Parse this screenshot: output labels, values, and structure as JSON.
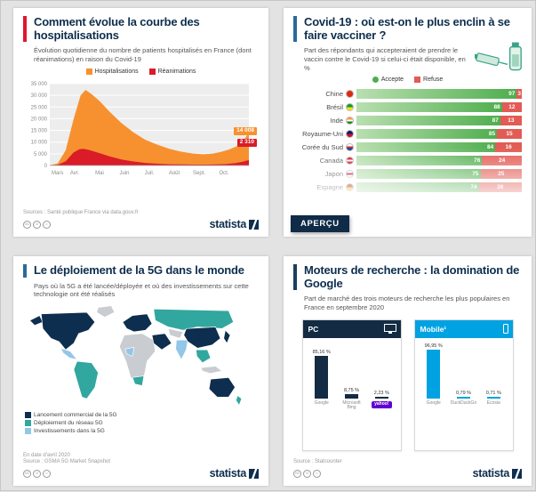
{
  "page": {
    "background": "#e3e3e3",
    "brand": "statista",
    "footer_icons": [
      {
        "name": "cc-license-icon",
        "glyph": "cc"
      },
      {
        "name": "cc-by-icon",
        "glyph": "☺"
      },
      {
        "name": "cc-nd-icon",
        "glyph": "="
      }
    ]
  },
  "cards": {
    "hosp": {
      "accent": "#e0162b",
      "title": "Comment évolue la courbe des hospitalisations",
      "subtitle": "Évolution quotidienne du nombre de patients hospitalisés en France (dont réanimations) en raison du Covid-19",
      "source": "Sources : Santé publique France via data.gouv.fr"
    },
    "vaccine": {
      "accent": "#2a6a99",
      "title": "Covid-19 : où est-on le plus enclin à se faire vacciner ?",
      "subtitle": "Part des répondants qui accepteraient de prendre le vaccin contre le Covid-19 si celui-ci était disponible, en %",
      "badge": "APERÇU"
    },
    "fiveg": {
      "accent": "#2a6a99",
      "title": "Le déploiement de la 5G dans le monde",
      "subtitle": "Pays où la 5G a été lancée/déployée et où des investissements sur cette technologie ont été réalisés",
      "note": "En date d'avril 2020",
      "source": "Source : GSMA 5G Market Snapshot"
    },
    "search": {
      "accent": "#18405f",
      "title": "Moteurs de recherche : la domination de Google",
      "subtitle": "Part de marché des trois moteurs de recherche les plus populaires en France en septembre 2020",
      "source": "Source : Statcounter"
    }
  },
  "chart_data": [
    {
      "type": "area",
      "title": "Comment évolue la courbe des hospitalisations",
      "x_ticks": [
        "Mars",
        "Avr.",
        "Mai",
        "Juin",
        "Juil.",
        "Août",
        "Sept.",
        "Oct."
      ],
      "y_ticks": [
        35000,
        30000,
        25000,
        20000,
        15000,
        10000,
        5000,
        0
      ],
      "ylim": [
        0,
        35000
      ],
      "grid": true,
      "series": [
        {
          "name": "Hospitalisations",
          "color": "#f79130",
          "end_value": "14 008",
          "points": [
            [
              0,
              100
            ],
            [
              0.04,
              900
            ],
            [
              0.08,
              6500
            ],
            [
              0.12,
              20000
            ],
            [
              0.155,
              30000
            ],
            [
              0.18,
              32300
            ],
            [
              0.21,
              30500
            ],
            [
              0.25,
              27600
            ],
            [
              0.3,
              23000
            ],
            [
              0.36,
              18200
            ],
            [
              0.42,
              14200
            ],
            [
              0.48,
              11000
            ],
            [
              0.54,
              8900
            ],
            [
              0.6,
              7100
            ],
            [
              0.66,
              5900
            ],
            [
              0.72,
              5100
            ],
            [
              0.77,
              4800
            ],
            [
              0.82,
              5100
            ],
            [
              0.86,
              5800
            ],
            [
              0.9,
              6800
            ],
            [
              0.94,
              8300
            ],
            [
              0.97,
              10400
            ],
            [
              1,
              14008
            ]
          ]
        },
        {
          "name": "Réanimations",
          "color": "#da1b28",
          "end_value": "2 310",
          "points": [
            [
              0,
              30
            ],
            [
              0.04,
              300
            ],
            [
              0.08,
              1800
            ],
            [
              0.12,
              5600
            ],
            [
              0.15,
              7000
            ],
            [
              0.17,
              7150
            ],
            [
              0.2,
              6600
            ],
            [
              0.25,
              5300
            ],
            [
              0.3,
              3900
            ],
            [
              0.36,
              2600
            ],
            [
              0.42,
              1700
            ],
            [
              0.48,
              1100
            ],
            [
              0.54,
              750
            ],
            [
              0.6,
              550
            ],
            [
              0.66,
              440
            ],
            [
              0.72,
              390
            ],
            [
              0.78,
              380
            ],
            [
              0.84,
              450
            ],
            [
              0.89,
              650
            ],
            [
              0.93,
              1000
            ],
            [
              0.97,
              1600
            ],
            [
              1,
              2310
            ]
          ]
        }
      ]
    },
    {
      "type": "bar",
      "orientation": "horizontal",
      "stacked": true,
      "title": "Covid-19 : où est-on le plus enclin à se faire vacciner ?",
      "unit": "%",
      "categories": [
        "Chine",
        "Brésil",
        "Inde",
        "Royaume-Uni",
        "Corée du Sud",
        "Canada",
        "Japon",
        "Espagne"
      ],
      "flags": [
        [
          "#de2910"
        ],
        [
          "#009c3b",
          "#ffdf00"
        ],
        [
          "#ff9933",
          "#ffffff",
          "#138808"
        ],
        [
          "#012169",
          "#c8102e"
        ],
        [
          "#ffffff",
          "#cd2e3a",
          "#0047a0"
        ],
        [
          "#d80621",
          "#ffffff",
          "#d80621"
        ],
        [
          "#ffffff",
          "#bc002d",
          "#ffffff"
        ],
        [
          "#aa151b",
          "#f1bf00"
        ]
      ],
      "series": [
        {
          "name": "Accepte",
          "color": "#4fae4e",
          "shape": "circle",
          "values": [
            97,
            88,
            87,
            85,
            84,
            76,
            75,
            74
          ]
        },
        {
          "name": "Refuse",
          "color": "#e25b54",
          "shape": "square",
          "values": [
            3,
            12,
            13,
            15,
            16,
            24,
            25,
            26
          ]
        }
      ]
    },
    {
      "type": "map",
      "title": "Le déploiement de la 5G dans le monde",
      "no_data_color": "#c9ccd0",
      "legend": [
        {
          "label": "Lancement commercial de la 5G",
          "color": "#0d2e4e",
          "regions": [
            "Amérique du Nord",
            "Europe",
            "Chine",
            "Japon",
            "Corée du Sud",
            "Moyen-Orient",
            "Australie"
          ]
        },
        {
          "label": "Déploiement du réseau 5G",
          "color": "#31a79f",
          "regions": [
            "Russie",
            "Amérique du Sud",
            "Afrique australe",
            "Asie du Sud-Est",
            "Nouvelle-Zélande"
          ]
        },
        {
          "label": "Investissements dans la 5G",
          "color": "#93c6e8",
          "regions": [
            "Mexique",
            "Inde",
            "Afrique de l'Ouest"
          ]
        }
      ]
    },
    {
      "type": "bar",
      "title": "Moteurs de recherche : la domination de Google",
      "unit": "%",
      "panels": [
        {
          "label": "PC",
          "color": "#132c44",
          "icon": "monitor",
          "bars": [
            {
              "name": "Google",
              "value": 85.16,
              "display": "85,16 %"
            },
            {
              "name": "Microsoft Bing",
              "value": 8.75,
              "display": "8,75 %"
            },
            {
              "name": "yahoo!",
              "value": 2.23,
              "display": "2,23 %",
              "badge_color": "#5f01d1"
            }
          ]
        },
        {
          "label": "Mobile¹",
          "color": "#00a2e2",
          "icon": "phone",
          "bars": [
            {
              "name": "Google",
              "value": 96.95,
              "display": "96,95 %"
            },
            {
              "name": "DuckDuckGo",
              "value": 0.79,
              "display": "0,79 %"
            },
            {
              "name": "Ecosia",
              "value": 0.71,
              "display": "0,71 %"
            }
          ]
        }
      ]
    }
  ]
}
